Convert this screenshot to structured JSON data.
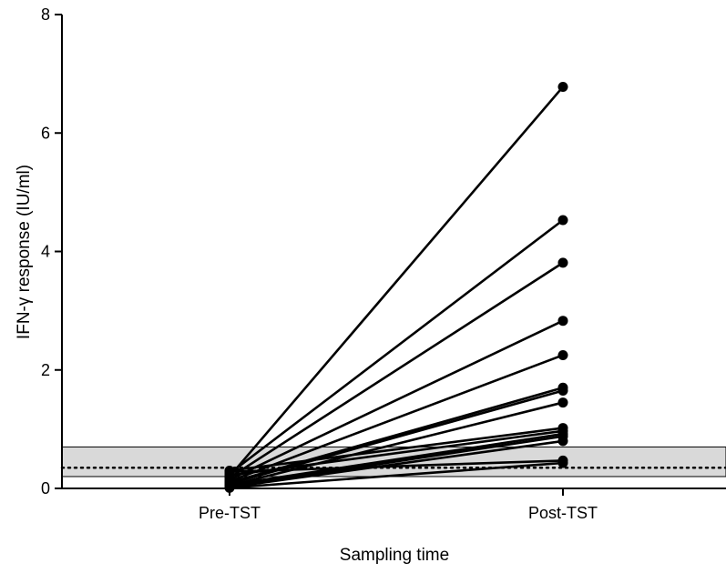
{
  "chart_data": {
    "type": "line",
    "title": "",
    "xlabel": "Sampling time",
    "ylabel": "IFN-γ response (IU/ml)",
    "categories": [
      "Pre-TST",
      "Post-TST"
    ],
    "ylim": [
      0,
      8
    ],
    "yticks": [
      0,
      2,
      4,
      6,
      8
    ],
    "grid": false,
    "legend": "none",
    "reference_band": {
      "low": 0.2,
      "high": 0.7,
      "color": "#d9d9d9"
    },
    "reference_line": {
      "value": 0.35,
      "style": "dotted"
    },
    "line_color": "#000000",
    "pairs": [
      {
        "pre": 0.2,
        "post": 6.78
      },
      {
        "pre": 0.25,
        "post": 4.53
      },
      {
        "pre": 0.18,
        "post": 3.81
      },
      {
        "pre": 0.15,
        "post": 2.83
      },
      {
        "pre": 0.12,
        "post": 2.25
      },
      {
        "pre": 0.1,
        "post": 1.7
      },
      {
        "pre": 0.08,
        "post": 1.65
      },
      {
        "pre": 0.05,
        "post": 1.45
      },
      {
        "pre": 0.3,
        "post": 1.02
      },
      {
        "pre": 0.22,
        "post": 0.97
      },
      {
        "pre": 0.06,
        "post": 0.92
      },
      {
        "pre": 0.03,
        "post": 0.88
      },
      {
        "pre": 0.02,
        "post": 0.8
      },
      {
        "pre": 0.28,
        "post": 0.47
      },
      {
        "pre": 0.01,
        "post": 0.43
      }
    ]
  }
}
